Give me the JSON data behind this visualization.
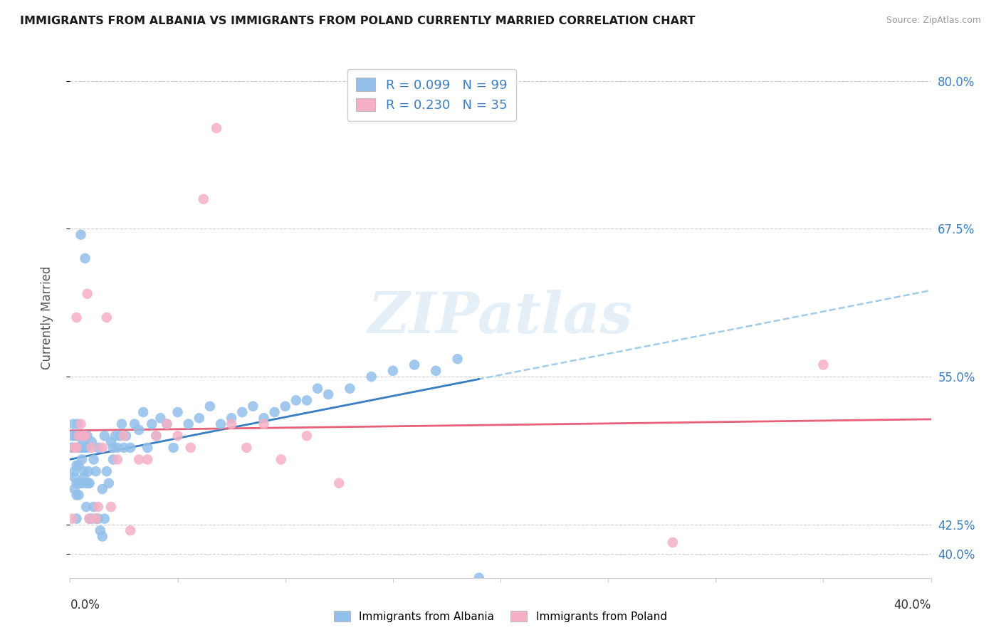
{
  "title": "IMMIGRANTS FROM ALBANIA VS IMMIGRANTS FROM POLAND CURRENTLY MARRIED CORRELATION CHART",
  "source": "Source: ZipAtlas.com",
  "ylabel": "Currently Married",
  "legend_albania": "Immigrants from Albania",
  "legend_poland": "Immigrants from Poland",
  "r_albania": 0.099,
  "n_albania": 99,
  "r_poland": 0.23,
  "n_poland": 35,
  "color_albania": "#92c0ea",
  "color_poland": "#f5b0c5",
  "trendline_albania_solid_color": "#3a7fc1",
  "trendline_albania_dash_color": "#a0cce8",
  "trendline_poland_color": "#e8607a",
  "watermark": "ZIPatlas",
  "ytick_labels": [
    "40.0%",
    "42.5%",
    "55.0%",
    "67.5%",
    "80.0%"
  ],
  "ytick_values": [
    40.0,
    42.5,
    55.0,
    67.5,
    80.0
  ],
  "xmin": 0.0,
  "xmax": 40.0,
  "ymin": 38.0,
  "ymax": 82.0,
  "albania_x": [
    0.1,
    0.1,
    0.15,
    0.2,
    0.2,
    0.2,
    0.25,
    0.25,
    0.3,
    0.3,
    0.3,
    0.3,
    0.35,
    0.35,
    0.35,
    0.4,
    0.4,
    0.4,
    0.45,
    0.45,
    0.5,
    0.5,
    0.5,
    0.5,
    0.55,
    0.55,
    0.6,
    0.6,
    0.6,
    0.65,
    0.65,
    0.7,
    0.7,
    0.7,
    0.75,
    0.75,
    0.8,
    0.8,
    0.85,
    0.85,
    0.9,
    0.9,
    1.0,
    1.0,
    1.1,
    1.1,
    1.2,
    1.2,
    1.3,
    1.3,
    1.4,
    1.5,
    1.5,
    1.6,
    1.6,
    1.7,
    1.8,
    1.9,
    2.0,
    2.0,
    2.1,
    2.2,
    2.3,
    2.4,
    2.5,
    2.6,
    2.8,
    3.0,
    3.2,
    3.4,
    3.6,
    3.8,
    4.0,
    4.2,
    4.5,
    4.8,
    5.0,
    5.5,
    6.0,
    6.5,
    7.0,
    7.5,
    8.0,
    8.5,
    9.0,
    9.5,
    10.0,
    10.5,
    11.0,
    11.5,
    12.0,
    13.0,
    14.0,
    15.0,
    16.0,
    17.0,
    18.0,
    19.0,
    0.1
  ],
  "albania_y": [
    49.0,
    50.0,
    51.0,
    45.5,
    46.5,
    47.0,
    49.0,
    50.0,
    43.0,
    45.0,
    46.0,
    47.5,
    49.0,
    50.0,
    51.0,
    45.0,
    46.0,
    47.5,
    49.0,
    50.0,
    46.0,
    49.0,
    50.0,
    67.0,
    46.0,
    48.0,
    49.0,
    49.5,
    50.0,
    46.5,
    47.0,
    49.0,
    65.0,
    50.0,
    44.0,
    46.0,
    49.0,
    50.0,
    46.0,
    47.0,
    43.0,
    46.0,
    43.0,
    49.5,
    44.0,
    48.0,
    43.0,
    47.0,
    43.0,
    49.0,
    42.0,
    41.5,
    45.5,
    43.0,
    50.0,
    47.0,
    46.0,
    49.5,
    49.0,
    48.0,
    50.0,
    49.0,
    50.0,
    51.0,
    49.0,
    50.0,
    49.0,
    51.0,
    50.5,
    52.0,
    49.0,
    51.0,
    50.0,
    51.5,
    51.0,
    49.0,
    52.0,
    51.0,
    51.5,
    52.5,
    51.0,
    51.5,
    52.0,
    52.5,
    51.5,
    52.0,
    52.5,
    53.0,
    53.0,
    54.0,
    53.5,
    54.0,
    55.0,
    55.5,
    56.0,
    55.5,
    56.5,
    38.0,
    49.0
  ],
  "poland_x": [
    0.1,
    0.2,
    0.3,
    0.3,
    0.4,
    0.5,
    0.6,
    0.7,
    0.8,
    0.9,
    1.0,
    1.2,
    1.3,
    1.5,
    1.7,
    1.9,
    2.2,
    2.5,
    2.8,
    3.2,
    3.6,
    4.0,
    4.5,
    5.0,
    5.6,
    6.2,
    6.8,
    7.5,
    8.2,
    9.0,
    9.8,
    11.0,
    12.5,
    28.0,
    35.0
  ],
  "poland_y": [
    43.0,
    49.0,
    49.0,
    60.0,
    50.0,
    51.0,
    50.0,
    50.0,
    62.0,
    43.0,
    49.0,
    43.0,
    44.0,
    49.0,
    60.0,
    44.0,
    48.0,
    50.0,
    42.0,
    48.0,
    48.0,
    50.0,
    51.0,
    50.0,
    49.0,
    70.0,
    76.0,
    51.0,
    49.0,
    51.0,
    48.0,
    50.0,
    46.0,
    41.0,
    56.0
  ]
}
